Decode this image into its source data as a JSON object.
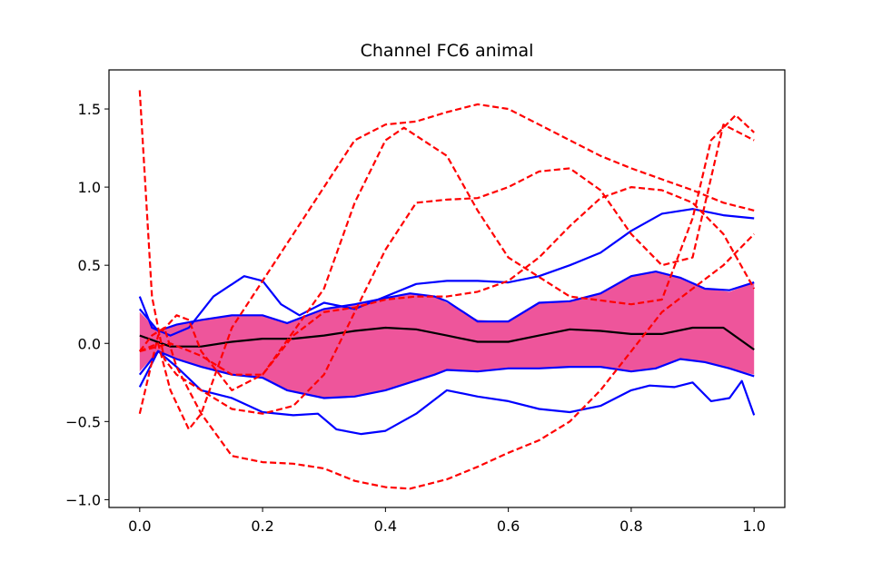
{
  "chart_data": {
    "type": "line",
    "title": "Channel FC6 animal",
    "xlabel": "",
    "ylabel": "",
    "xlim": [
      -0.05,
      1.05
    ],
    "ylim": [
      -1.05,
      1.75
    ],
    "xticks": [
      0.0,
      0.2,
      0.4,
      0.6,
      0.8,
      1.0
    ],
    "xtick_labels": [
      "0.0",
      "0.2",
      "0.4",
      "0.6",
      "0.8",
      "1.0"
    ],
    "yticks": [
      -1.0,
      -0.5,
      0.0,
      0.5,
      1.0,
      1.5
    ],
    "ytick_labels": [
      "−1.0",
      "−0.5",
      "0.0",
      "0.5",
      "1.0",
      "1.5"
    ],
    "grid": false,
    "band": {
      "name": "",
      "color": "#ee559b",
      "x": [
        0.0,
        0.03,
        0.06,
        0.1,
        0.15,
        0.2,
        0.24,
        0.3,
        0.35,
        0.4,
        0.44,
        0.48,
        0.5,
        0.55,
        0.6,
        0.65,
        0.7,
        0.75,
        0.8,
        0.84,
        0.88,
        0.92,
        0.96,
        1.0
      ],
      "upper": [
        0.2,
        0.08,
        0.12,
        0.15,
        0.18,
        0.18,
        0.13,
        0.22,
        0.25,
        0.29,
        0.32,
        0.3,
        0.26,
        0.15,
        0.14,
        0.26,
        0.27,
        0.32,
        0.43,
        0.46,
        0.42,
        0.35,
        0.33,
        0.39
      ],
      "lower": [
        -0.18,
        -0.05,
        -0.1,
        -0.15,
        -0.2,
        -0.22,
        -0.3,
        -0.35,
        -0.34,
        -0.3,
        -0.25,
        -0.2,
        -0.17,
        -0.18,
        -0.16,
        -0.16,
        -0.15,
        -0.15,
        -0.18,
        -0.16,
        -0.1,
        -0.12,
        -0.16,
        -0.2
      ]
    },
    "band_edges": {
      "color": "#0000ff",
      "upper": [
        0.22,
        0.08,
        0.12,
        0.15,
        0.18,
        0.18,
        0.13,
        0.22,
        0.25,
        0.29,
        0.32,
        0.3,
        0.27,
        0.14,
        0.14,
        0.26,
        0.27,
        0.32,
        0.43,
        0.46,
        0.42,
        0.35,
        0.34,
        0.39
      ],
      "lower": [
        -0.2,
        -0.05,
        -0.1,
        -0.15,
        -0.2,
        -0.22,
        -0.3,
        -0.35,
        -0.34,
        -0.3,
        -0.25,
        -0.2,
        -0.17,
        -0.18,
        -0.16,
        -0.16,
        -0.15,
        -0.15,
        -0.18,
        -0.16,
        -0.1,
        -0.12,
        -0.16,
        -0.21
      ]
    },
    "series": [
      {
        "style": "solid",
        "color": "#000000",
        "x": [
          0.0,
          0.05,
          0.1,
          0.15,
          0.2,
          0.25,
          0.3,
          0.35,
          0.4,
          0.45,
          0.5,
          0.55,
          0.6,
          0.65,
          0.7,
          0.75,
          0.8,
          0.85,
          0.9,
          0.95,
          1.0
        ],
        "y": [
          0.05,
          -0.02,
          -0.02,
          0.01,
          0.03,
          0.03,
          0.05,
          0.08,
          0.1,
          0.09,
          0.05,
          0.01,
          0.01,
          0.05,
          0.09,
          0.08,
          0.06,
          0.06,
          0.1,
          0.1,
          -0.04
        ]
      },
      {
        "style": "solid",
        "color": "#0000ff",
        "x": [
          0.0,
          0.02,
          0.05,
          0.08,
          0.12,
          0.17,
          0.2,
          0.23,
          0.26,
          0.3,
          0.35,
          0.4,
          0.45,
          0.5,
          0.55,
          0.6,
          0.65,
          0.7,
          0.75,
          0.8,
          0.85,
          0.9,
          0.95,
          1.0
        ],
        "y": [
          0.3,
          0.1,
          0.05,
          0.1,
          0.3,
          0.43,
          0.4,
          0.25,
          0.18,
          0.26,
          0.22,
          0.3,
          0.38,
          0.4,
          0.4,
          0.39,
          0.43,
          0.5,
          0.58,
          0.72,
          0.83,
          0.86,
          0.82,
          0.8
        ]
      },
      {
        "style": "solid",
        "color": "#0000ff",
        "x": [
          0.0,
          0.03,
          0.06,
          0.1,
          0.15,
          0.2,
          0.25,
          0.29,
          0.32,
          0.36,
          0.4,
          0.45,
          0.5,
          0.5,
          0.55,
          0.6,
          0.65,
          0.7,
          0.75,
          0.8,
          0.83,
          0.87,
          0.9,
          0.93,
          0.96,
          0.98,
          1.0
        ],
        "y": [
          -0.28,
          -0.05,
          -0.15,
          -0.3,
          -0.35,
          -0.44,
          -0.46,
          -0.45,
          -0.55,
          -0.58,
          -0.56,
          -0.45,
          -0.3,
          -0.3,
          -0.34,
          -0.37,
          -0.42,
          -0.44,
          -0.4,
          -0.3,
          -0.27,
          -0.28,
          -0.25,
          -0.37,
          -0.35,
          -0.24,
          -0.46
        ]
      },
      {
        "style": "dashed",
        "color": "#ff0000",
        "x": [
          0.0,
          0.02,
          0.04,
          0.06,
          0.1,
          0.15,
          0.2,
          0.25,
          0.3,
          0.35,
          0.4,
          0.45,
          0.5,
          0.55,
          0.6,
          0.65,
          0.7,
          0.75,
          0.8,
          0.85,
          0.9,
          0.95,
          1.0
        ],
        "y": [
          1.62,
          0.3,
          -0.1,
          -0.2,
          -0.3,
          -0.42,
          -0.45,
          -0.4,
          -0.2,
          0.2,
          0.6,
          0.9,
          0.92,
          0.93,
          1.0,
          1.1,
          1.12,
          0.98,
          0.7,
          0.5,
          0.55,
          1.4,
          1.3
        ]
      },
      {
        "style": "dashed",
        "color": "#ff0000",
        "x": [
          0.0,
          0.03,
          0.06,
          0.08,
          0.1,
          0.15,
          0.2,
          0.3,
          0.35,
          0.4,
          0.43,
          0.5,
          0.55,
          0.6,
          0.7,
          0.8,
          0.85,
          0.9,
          0.93,
          0.97,
          1.0
        ],
        "y": [
          -0.45,
          0.05,
          0.18,
          0.15,
          -0.05,
          -0.3,
          -0.2,
          0.35,
          0.9,
          1.3,
          1.38,
          1.2,
          0.85,
          0.55,
          0.3,
          0.25,
          0.28,
          0.8,
          1.3,
          1.46,
          1.35
        ]
      },
      {
        "style": "dashed",
        "color": "#ff0000",
        "x": [
          0.0,
          0.03,
          0.05,
          0.08,
          0.1,
          0.15,
          0.2,
          0.25,
          0.3,
          0.35,
          0.4,
          0.45,
          0.5,
          0.55,
          0.6,
          0.65,
          0.7,
          0.75,
          0.8,
          0.85,
          0.9,
          0.95,
          1.0
        ],
        "y": [
          -0.05,
          0.0,
          -0.3,
          -0.55,
          -0.45,
          0.1,
          0.4,
          0.7,
          1.0,
          1.3,
          1.4,
          1.42,
          1.48,
          1.53,
          1.5,
          1.4,
          1.3,
          1.2,
          1.12,
          1.05,
          0.98,
          0.9,
          0.85
        ]
      },
      {
        "style": "dashed",
        "color": "#ff0000",
        "x": [
          0.0,
          0.02,
          0.04,
          0.06,
          0.1,
          0.15,
          0.2,
          0.25,
          0.3,
          0.35,
          0.4,
          0.44,
          0.5,
          0.55,
          0.6,
          0.65,
          0.7,
          0.75,
          0.8,
          0.85,
          0.9,
          0.95,
          1.0
        ],
        "y": [
          -0.05,
          0.05,
          0.1,
          -0.15,
          -0.45,
          -0.72,
          -0.76,
          -0.77,
          -0.8,
          -0.88,
          -0.92,
          -0.93,
          -0.87,
          -0.79,
          -0.7,
          -0.62,
          -0.5,
          -0.3,
          -0.05,
          0.2,
          0.35,
          0.5,
          0.7
        ]
      },
      {
        "style": "dashed",
        "color": "#ff0000",
        "x": [
          0.0,
          0.05,
          0.1,
          0.15,
          0.2,
          0.25,
          0.3,
          0.35,
          0.4,
          0.45,
          0.5,
          0.55,
          0.6,
          0.65,
          0.7,
          0.75,
          0.8,
          0.85,
          0.9,
          0.95,
          1.0
        ],
        "y": [
          -0.05,
          0.0,
          -0.08,
          -0.2,
          -0.2,
          0.05,
          0.2,
          0.23,
          0.28,
          0.3,
          0.3,
          0.33,
          0.4,
          0.55,
          0.75,
          0.93,
          1.0,
          0.98,
          0.9,
          0.7,
          0.35
        ]
      }
    ]
  }
}
